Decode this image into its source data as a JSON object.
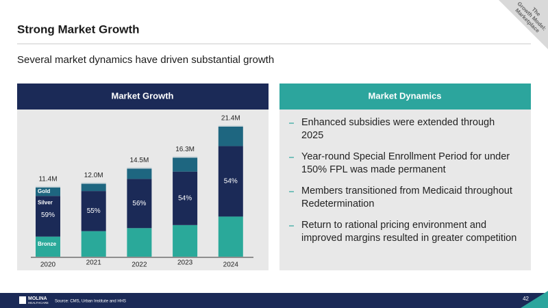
{
  "header": {
    "title": "Strong Market Growth",
    "subtitle": "Several market dynamics have driven substantial growth",
    "corner_tag": [
      "The",
      "Growth Model:",
      "Marketplace"
    ]
  },
  "chart_data": {
    "type": "stacked_bar",
    "title": "Market Growth",
    "categories": [
      "2020",
      "2021",
      "2022",
      "2023",
      "2024"
    ],
    "series": [
      {
        "name": "Bronze",
        "color": "#2aa99a",
        "values": [
          3.3,
          4.2,
          4.7,
          5.2,
          6.6
        ]
      },
      {
        "name": "Silver",
        "color": "#1b2a57",
        "values": [
          6.7,
          6.6,
          8.1,
          8.8,
          11.6
        ]
      },
      {
        "name": "Gold",
        "color": "#1e6680",
        "values": [
          1.4,
          1.2,
          1.7,
          2.3,
          3.2
        ]
      }
    ],
    "totals": {
      "values": [
        11.4,
        12.0,
        14.5,
        16.3,
        21.4
      ],
      "value_labels": [
        "11.4M",
        "12.0M",
        "14.5M",
        "16.3M",
        "21.4M"
      ]
    },
    "silver_share": {
      "values": [
        59,
        55,
        56,
        54,
        54
      ],
      "value_labels": [
        "59%",
        "55%",
        "56%",
        "54%",
        "54%"
      ]
    }
  },
  "dynamics": {
    "title": "Market Dynamics",
    "bullets": [
      "Enhanced subsidies were extended through 2025",
      "Year-round Special Enrollment Period for under 150% FPL was made permanent",
      "Members transitioned from Medicaid throughout Redetermination",
      "Return to rational pricing environment and improved margins resulted in greater competition"
    ]
  },
  "footer": {
    "logo_name": "MOLINA",
    "logo_sub": "HEALTHCARE",
    "source": "Source: CMS, Urban Institute and HHS",
    "page": "42"
  }
}
